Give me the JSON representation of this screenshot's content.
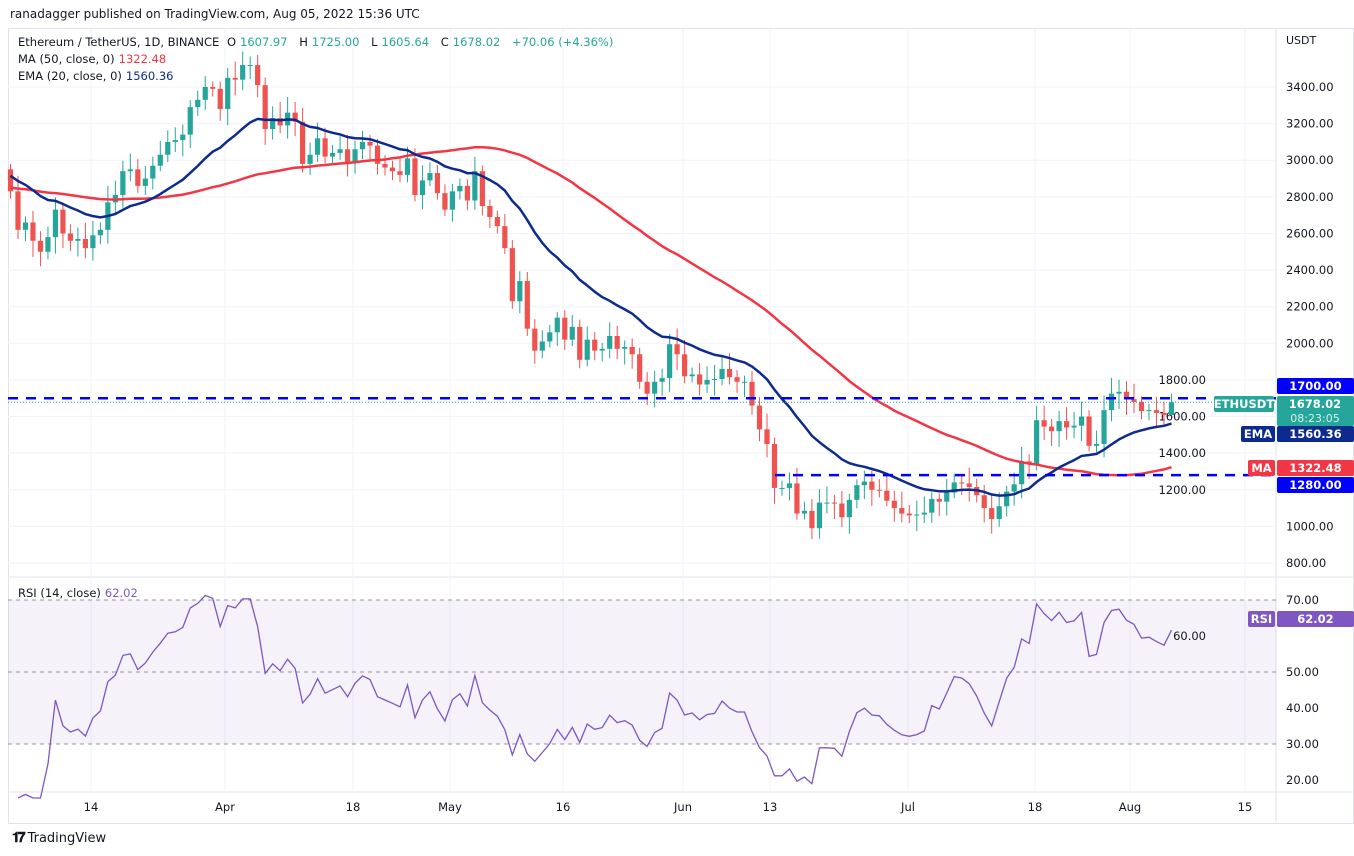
{
  "header": {
    "published": "ranadagger published on TradingView.com, Aug 05, 2022 15:36 UTC"
  },
  "legend": {
    "symbol": "Ethereum / TetherUS, 1D, BINANCE",
    "o_label": "O",
    "o": "1607.97",
    "h_label": "H",
    "h": "1725.00",
    "l_label": "L",
    "l": "1605.64",
    "c_label": "C",
    "c": "1678.02",
    "change": "+70.06 (+4.36%)",
    "ma_label": "MA (50, close, 0)",
    "ma_value": "1322.48",
    "ema_label": "EMA (20, close, 0)",
    "ema_value": "1560.36",
    "rsi_label": "RSI (14, close)",
    "rsi_value": "62.02"
  },
  "price_scale": {
    "currency": "USDT",
    "ticks": [
      "3400.00",
      "3200.00",
      "3000.00",
      "2800.00",
      "2600.00",
      "2400.00",
      "2200.00",
      "2000.00",
      "1800.00",
      "1600.00",
      "1400.00",
      "1200.00",
      "1000.00",
      "800.00"
    ]
  },
  "rsi_scale": {
    "ticks": [
      "70.00",
      "60.00",
      "50.00",
      "40.00",
      "30.00",
      "20.00"
    ]
  },
  "badges": {
    "level_high": "1700.00",
    "symbol_tag": "ETHUSDT",
    "last_price": "1678.02",
    "countdown": "08:23:05",
    "ema_tag": "EMA",
    "ema_value": "1560.36",
    "ma_tag": "MA",
    "ma_value": "1322.48",
    "level_low": "1280.00",
    "rsi_tag": "RSI",
    "rsi_value": "62.02"
  },
  "x_axis": {
    "labels": [
      "14",
      "Apr",
      "18",
      "May",
      "16",
      "Jun",
      "13",
      "Jul",
      "18",
      "Aug",
      "15"
    ]
  },
  "footer": {
    "brand": "TradingView",
    "logo": "TV"
  },
  "colors": {
    "up": "#26a69a",
    "down": "#ef5350",
    "ema": "#0d2b8f",
    "ma": "#f23645",
    "rsi": "#7e57c2",
    "level": "#0000ff"
  },
  "chart_data": {
    "type": "candlestick",
    "title": "Ethereum / TetherUS, 1D, BINANCE",
    "start_date": "2022-03-03",
    "end_date": "2022-08-05",
    "first_open": 2950,
    "last_candle": {
      "open": 1607.97,
      "high": 1725.0,
      "low": 1605.64,
      "close": 1678.02
    },
    "closes": [
      2830,
      2620,
      2660,
      2560,
      2500,
      2580,
      2730,
      2600,
      2560,
      2570,
      2520,
      2590,
      2620,
      2770,
      2810,
      2940,
      2950,
      2860,
      2900,
      2970,
      3030,
      3100,
      3110,
      3140,
      3290,
      3330,
      3400,
      3390,
      3280,
      3450,
      3440,
      3520,
      3520,
      3410,
      3170,
      3230,
      3190,
      3260,
      3210,
      2980,
      3030,
      3120,
      3020,
      3040,
      3060,
      2990,
      3060,
      3100,
      3080,
      2980,
      2960,
      2940,
      2920,
      3010,
      2810,
      2890,
      2930,
      2820,
      2730,
      2830,
      2860,
      2780,
      2940,
      2750,
      2690,
      2640,
      2520,
      2230,
      2340,
      2080,
      1960,
      2010,
      2060,
      2140,
      2020,
      2090,
      1910,
      2020,
      1960,
      1970,
      2040,
      1970,
      1980,
      1940,
      1790,
      1725,
      1790,
      1810,
      1995,
      1940,
      1820,
      1830,
      1775,
      1800,
      1805,
      1860,
      1815,
      1790,
      1790,
      1660,
      1530,
      1450,
      1210,
      1210,
      1235,
      1070,
      1085,
      990,
      1130,
      1130,
      1125,
      1050,
      1145,
      1225,
      1245,
      1200,
      1195,
      1140,
      1100,
      1070,
      1060,
      1065,
      1075,
      1150,
      1135,
      1185,
      1240,
      1235,
      1215,
      1170,
      1100,
      1040,
      1110,
      1190,
      1230,
      1355,
      1340,
      1580,
      1545,
      1520,
      1575,
      1540,
      1550,
      1600,
      1440,
      1450,
      1635,
      1725,
      1735,
      1695,
      1680,
      1630,
      1635,
      1620,
      1608,
      1678.02
    ],
    "indicators": {
      "ma": {
        "period": 50,
        "last": 1322.48
      },
      "ema": {
        "period": 20,
        "last": 1560.36
      },
      "rsi": {
        "period": 14,
        "last": 62.02,
        "bands": [
          30,
          70
        ]
      }
    },
    "horizontal_levels": [
      1700,
      1280
    ],
    "ylim": [
      800,
      3400
    ],
    "rsi_ylim": [
      20,
      70
    ],
    "ylabel": "USDT"
  }
}
